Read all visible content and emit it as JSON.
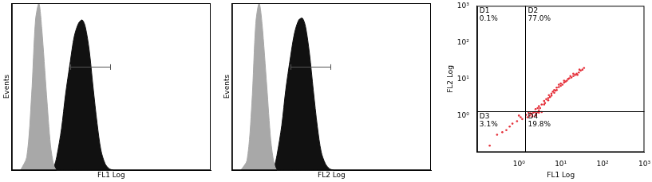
{
  "chart_data": [
    {
      "type": "histogram",
      "x_label": "FL1 Log",
      "y_label": "Events",
      "log": "x",
      "xlim": [
        1,
        10000
      ],
      "ylim": [
        0,
        100
      ],
      "tick_labels": false,
      "grid": false,
      "x": [
        1.5,
        2,
        2.5,
        3,
        3.5,
        4,
        5,
        6,
        7,
        8,
        10,
        12,
        15,
        18,
        22,
        26,
        30,
        36,
        43,
        52,
        62,
        75,
        90,
        110
      ],
      "series": [
        {
          "color": "#a8a8a8",
          "values": [
            0,
            8,
            45,
            90,
            100,
            85,
            45,
            15,
            3,
            0,
            0,
            0,
            0,
            0,
            0,
            0,
            0,
            0,
            0,
            0,
            0,
            0,
            0,
            0
          ]
        },
        {
          "color": "#111111",
          "values": [
            0,
            0,
            0,
            0,
            0,
            0,
            0,
            0,
            2,
            8,
            25,
            45,
            65,
            80,
            88,
            90,
            86,
            72,
            50,
            28,
            12,
            4,
            1,
            0
          ]
        }
      ],
      "gate": {
        "x": [
          15,
          95
        ],
        "y": 62
      }
    },
    {
      "type": "histogram",
      "x_label": "FL2 Log",
      "y_label": "Events",
      "log": "x",
      "xlim": [
        1,
        10000
      ],
      "ylim": [
        0,
        100
      ],
      "tick_labels": false,
      "grid": false,
      "x": [
        1.5,
        2,
        2.5,
        3,
        3.5,
        4,
        5,
        6,
        7,
        8,
        10,
        12,
        15,
        18,
        22,
        26,
        30,
        36,
        43,
        52,
        62,
        75,
        90,
        110
      ],
      "series": [
        {
          "color": "#a8a8a8",
          "values": [
            0,
            6,
            40,
            88,
            100,
            88,
            50,
            18,
            4,
            0,
            0,
            0,
            0,
            0,
            0,
            0,
            0,
            0,
            0,
            0,
            0,
            0,
            0,
            0
          ]
        },
        {
          "color": "#111111",
          "values": [
            0,
            0,
            0,
            0,
            0,
            0,
            0,
            0,
            2,
            9,
            27,
            48,
            68,
            82,
            90,
            91,
            86,
            70,
            48,
            26,
            11,
            4,
            1,
            0
          ]
        }
      ],
      "gate": {
        "x": [
          15,
          95
        ],
        "y": 62
      }
    },
    {
      "type": "scatter",
      "x_label": "FL1 Log",
      "y_label": "FL2 Log",
      "log": true,
      "xlim": [
        0.1,
        1000
      ],
      "ylim": [
        0.1,
        1000
      ],
      "grid": false,
      "color": "#e5303a",
      "xticks": [
        {
          "value": 1,
          "label": "10⁰"
        },
        {
          "value": 10,
          "label": "10¹"
        },
        {
          "value": 100,
          "label": "10²"
        },
        {
          "value": 1000,
          "label": "10³"
        }
      ],
      "yticks": [
        {
          "value": 1,
          "label": "10⁰"
        },
        {
          "value": 10,
          "label": "10¹"
        },
        {
          "value": 100,
          "label": "10²"
        },
        {
          "value": 1000,
          "label": "10³"
        }
      ],
      "x": [
        0.2,
        0.3,
        0.5,
        0.7,
        0.9,
        1.1,
        1.2,
        0.6,
        1.0,
        0.4,
        1.6,
        1.8,
        2,
        2.2,
        2.5,
        3,
        1.7,
        2.8,
        2.1,
        3.5,
        1.9,
        2.4,
        1.5,
        2.6,
        2.5,
        3,
        3.5,
        4,
        4,
        5,
        5,
        6,
        6,
        7,
        7,
        8,
        8,
        9,
        10,
        10,
        11,
        12,
        13,
        14,
        15,
        16,
        18,
        20,
        22,
        24,
        27,
        30,
        33,
        36,
        3.2,
        4.5,
        5.5,
        6.5,
        7.5,
        9,
        12,
        3,
        2.8,
        4.2,
        5.2,
        17,
        20,
        25,
        28
      ],
      "values": [
        0.15,
        0.3,
        0.4,
        0.6,
        0.7,
        0.9,
        0.8,
        0.5,
        1.0,
        0.35,
        0.9,
        1.0,
        1.1,
        1.2,
        1.0,
        1.2,
        1.2,
        1.25,
        0.95,
        1.25,
        1.15,
        1.25,
        1.05,
        1.15,
        1.5,
        1.8,
        2,
        2.5,
        2,
        3,
        2.6,
        3.5,
        4,
        4.2,
        5,
        5,
        5.8,
        6,
        6.5,
        7.5,
        7,
        8,
        8.5,
        9,
        10,
        10.5,
        11,
        12,
        13,
        14,
        15,
        17,
        18,
        20,
        1.6,
        2.8,
        3.2,
        4.5,
        4.8,
        7,
        9,
        1.4,
        1.6,
        2.2,
        3.6,
        12,
        14,
        13,
        18
      ],
      "quadrants": {
        "x": 1.4,
        "y": 1.3,
        "regions": [
          {
            "name": "D1",
            "value": 0.1,
            "label": "0.1%"
          },
          {
            "name": "D2",
            "value": 77.0,
            "label": "77.0%"
          },
          {
            "name": "D3",
            "value": 3.1,
            "label": "3.1%"
          },
          {
            "name": "D4",
            "value": 19.8,
            "label": "19.8%"
          }
        ]
      }
    }
  ]
}
